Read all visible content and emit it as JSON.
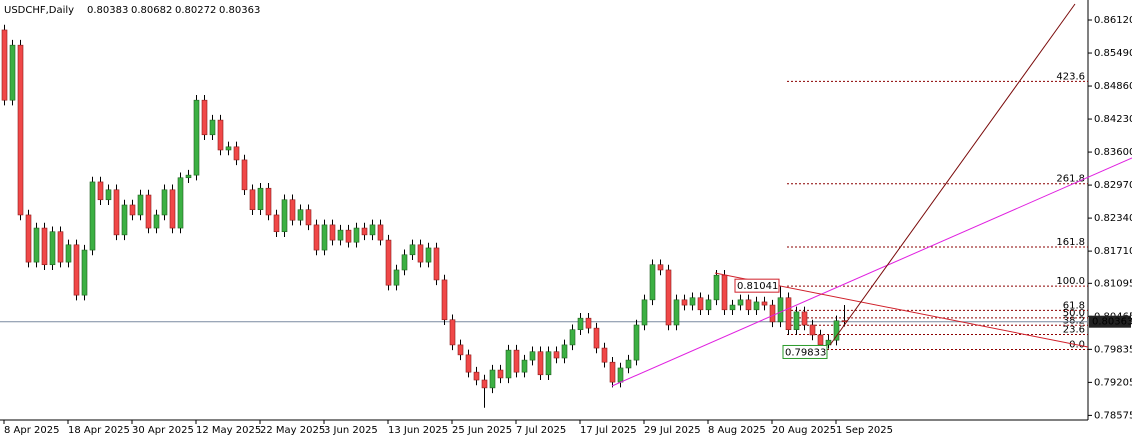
{
  "chart_data": {
    "type": "candlestick",
    "symbol": "USDCHF,Daily",
    "ylim": [
      0.78487,
      0.86502
    ],
    "yticks": [
      {
        "value": 0.8612,
        "label": "0.86120"
      },
      {
        "value": 0.8549,
        "label": "0.85490"
      },
      {
        "value": 0.8486,
        "label": "0.84860"
      },
      {
        "value": 0.8423,
        "label": "0.84230"
      },
      {
        "value": 0.836,
        "label": "0.83600"
      },
      {
        "value": 0.8297,
        "label": "0.82970"
      },
      {
        "value": 0.8234,
        "label": "0.82340"
      },
      {
        "value": 0.8171,
        "label": "0.81710"
      },
      0.81095,
      0.80465,
      0.79835,
      0.79205,
      0.78575
    ],
    "up_color": "#3cb043",
    "down_color": "#f04848",
    "categories": [
      "8 Apr 2025",
      null,
      null,
      null,
      null,
      null,
      null,
      null,
      "18 Apr 2025",
      null,
      null,
      null,
      null,
      null,
      null,
      null,
      "30 Apr 2025",
      null,
      null,
      null,
      null,
      null,
      null,
      null,
      "12 May 2025",
      null,
      null,
      null,
      null,
      null,
      null,
      null,
      "22 May 2025",
      null,
      null,
      null,
      null,
      null,
      null,
      null,
      "3 Jun 2025",
      null,
      null,
      null,
      null,
      null,
      null,
      null,
      "13 Jun 2025",
      null,
      null,
      null,
      null,
      null,
      null,
      null,
      "25 Jun 2025",
      null,
      null,
      null,
      null,
      null,
      null,
      null,
      "7 Jul 2025",
      null,
      null,
      null,
      null,
      null,
      null,
      null,
      "17 Jul 2025",
      null,
      null,
      null,
      null,
      null,
      null,
      null,
      "29 Jul 2025",
      null,
      null,
      null,
      null,
      null,
      null,
      null,
      "8 Aug 2025",
      null,
      null,
      null,
      null,
      null,
      null,
      null,
      "20 Aug 2025",
      null,
      null,
      null,
      null,
      null,
      null,
      null,
      "1 Sep 2025",
      null
    ],
    "ohlc": [
      [
        0.8593,
        0.8603,
        0.8449,
        0.8459
      ],
      [
        0.8459,
        0.8574,
        0.8449,
        0.8564
      ],
      [
        0.8564,
        0.8574,
        0.823,
        0.824
      ],
      [
        0.824,
        0.825,
        0.814,
        0.815
      ],
      [
        0.815,
        0.8225,
        0.814,
        0.8215
      ],
      [
        0.8215,
        0.8225,
        0.8135,
        0.8145
      ],
      [
        0.8145,
        0.8218,
        0.8135,
        0.8208
      ],
      [
        0.8208,
        0.8218,
        0.814,
        0.815
      ],
      [
        0.815,
        0.8193,
        0.814,
        0.8183
      ],
      [
        0.8183,
        0.8193,
        0.8077,
        0.8087
      ],
      [
        0.8087,
        0.8183,
        0.8077,
        0.8173
      ],
      [
        0.8173,
        0.8313,
        0.8163,
        0.8303
      ],
      [
        0.8303,
        0.8313,
        0.8259,
        0.8269
      ],
      [
        0.8269,
        0.8298,
        0.8259,
        0.8288
      ],
      [
        0.8288,
        0.8298,
        0.8192,
        0.8202
      ],
      [
        0.8202,
        0.8269,
        0.8192,
        0.8259
      ],
      [
        0.8259,
        0.8269,
        0.823,
        0.824
      ],
      [
        0.824,
        0.8288,
        0.823,
        0.8278
      ],
      [
        0.8278,
        0.8288,
        0.8205,
        0.8215
      ],
      [
        0.8215,
        0.825,
        0.8205,
        0.824
      ],
      [
        0.824,
        0.8298,
        0.823,
        0.8288
      ],
      [
        0.8288,
        0.8298,
        0.8205,
        0.8215
      ],
      [
        0.8215,
        0.8321,
        0.8205,
        0.8311
      ],
      [
        0.8311,
        0.8326,
        0.8301,
        0.8316
      ],
      [
        0.8316,
        0.8469,
        0.8306,
        0.8459
      ],
      [
        0.8459,
        0.8469,
        0.8383,
        0.8393
      ],
      [
        0.8393,
        0.8431,
        0.8383,
        0.8421
      ],
      [
        0.8421,
        0.8431,
        0.8354,
        0.8364
      ],
      [
        0.8364,
        0.838,
        0.8354,
        0.837
      ],
      [
        0.837,
        0.838,
        0.8335,
        0.8345
      ],
      [
        0.8345,
        0.8355,
        0.8278,
        0.8288
      ],
      [
        0.8288,
        0.8298,
        0.824,
        0.825
      ],
      [
        0.825,
        0.8301,
        0.824,
        0.8291
      ],
      [
        0.8291,
        0.8301,
        0.823,
        0.824
      ],
      [
        0.824,
        0.825,
        0.8198,
        0.8208
      ],
      [
        0.8208,
        0.8279,
        0.8198,
        0.8269
      ],
      [
        0.8269,
        0.8279,
        0.822,
        0.823
      ],
      [
        0.823,
        0.826,
        0.822,
        0.825
      ],
      [
        0.825,
        0.826,
        0.8211,
        0.8221
      ],
      [
        0.8221,
        0.8231,
        0.8163,
        0.8173
      ],
      [
        0.8173,
        0.8231,
        0.8163,
        0.8221
      ],
      [
        0.8221,
        0.8231,
        0.8182,
        0.8192
      ],
      [
        0.8192,
        0.8221,
        0.8182,
        0.8211
      ],
      [
        0.8211,
        0.8221,
        0.8178,
        0.8188
      ],
      [
        0.8188,
        0.8225,
        0.8178,
        0.8215
      ],
      [
        0.8215,
        0.8225,
        0.8192,
        0.8202
      ],
      [
        0.8202,
        0.8231,
        0.8192,
        0.8221
      ],
      [
        0.8221,
        0.8231,
        0.8182,
        0.8192
      ],
      [
        0.8192,
        0.8202,
        0.8096,
        0.8106
      ],
      [
        0.8106,
        0.8145,
        0.8096,
        0.8135
      ],
      [
        0.8135,
        0.8174,
        0.8125,
        0.8164
      ],
      [
        0.8164,
        0.8193,
        0.8154,
        0.8183
      ],
      [
        0.8183,
        0.8193,
        0.814,
        0.815
      ],
      [
        0.815,
        0.8187,
        0.814,
        0.8177
      ],
      [
        0.8177,
        0.8187,
        0.8106,
        0.8116
      ],
      [
        0.8116,
        0.8126,
        0.803,
        0.804
      ],
      [
        0.804,
        0.805,
        0.7982,
        0.7992
      ],
      [
        0.7992,
        0.8002,
        0.7963,
        0.7973
      ],
      [
        0.7973,
        0.7983,
        0.793,
        0.794
      ],
      [
        0.794,
        0.795,
        0.7915,
        0.7925
      ],
      [
        0.7925,
        0.7935,
        0.7872,
        0.791
      ],
      [
        0.791,
        0.7954,
        0.79,
        0.7944
      ],
      [
        0.7944,
        0.7954,
        0.7919,
        0.7929
      ],
      [
        0.7929,
        0.7992,
        0.7919,
        0.7982
      ],
      [
        0.7982,
        0.7992,
        0.793,
        0.794
      ],
      [
        0.794,
        0.7973,
        0.793,
        0.7963
      ],
      [
        0.7963,
        0.7989,
        0.7953,
        0.7979
      ],
      [
        0.7979,
        0.7989,
        0.7925,
        0.7935
      ],
      [
        0.7935,
        0.7989,
        0.7925,
        0.7979
      ],
      [
        0.7979,
        0.7989,
        0.7957,
        0.7967
      ],
      [
        0.7967,
        0.8002,
        0.7957,
        0.7992
      ],
      [
        0.7992,
        0.8031,
        0.7982,
        0.8021
      ],
      [
        0.8021,
        0.8053,
        0.8011,
        0.8043
      ],
      [
        0.8043,
        0.8053,
        0.8014,
        0.8024
      ],
      [
        0.8024,
        0.8034,
        0.7976,
        0.7986
      ],
      [
        0.7986,
        0.7996,
        0.7949,
        0.7959
      ],
      [
        0.7959,
        0.7969,
        0.7911,
        0.7921
      ],
      [
        0.7921,
        0.7958,
        0.7911,
        0.7948
      ],
      [
        0.7948,
        0.7973,
        0.7938,
        0.7963
      ],
      [
        0.7963,
        0.804,
        0.7953,
        0.803
      ],
      [
        0.803,
        0.8088,
        0.802,
        0.8078
      ],
      [
        0.8078,
        0.8155,
        0.8068,
        0.8145
      ],
      [
        0.8145,
        0.8155,
        0.8125,
        0.8135
      ],
      [
        0.8135,
        0.8145,
        0.802,
        0.803
      ],
      [
        0.803,
        0.8088,
        0.802,
        0.8078
      ],
      [
        0.8078,
        0.8088,
        0.8058,
        0.8068
      ],
      [
        0.8068,
        0.8092,
        0.8058,
        0.8082
      ],
      [
        0.8082,
        0.8092,
        0.8049,
        0.8059
      ],
      [
        0.8059,
        0.8088,
        0.8049,
        0.8078
      ],
      [
        0.8078,
        0.8135,
        0.8068,
        0.8125
      ],
      [
        0.8125,
        0.8135,
        0.8049,
        0.8059
      ],
      [
        0.8059,
        0.8078,
        0.8049,
        0.8068
      ],
      [
        0.8068,
        0.8088,
        0.8058,
        0.8078
      ],
      [
        0.8078,
        0.8088,
        0.8049,
        0.8059
      ],
      [
        0.8059,
        0.8084,
        0.8049,
        0.8074
      ],
      [
        0.8074,
        0.8084,
        0.8058,
        0.8068
      ],
      [
        0.8068,
        0.8078,
        0.8026,
        0.8036
      ],
      [
        0.8036,
        0.81041,
        0.8026,
        0.8082
      ],
      [
        0.8082,
        0.8092,
        0.8011,
        0.8021
      ],
      [
        0.8021,
        0.8065,
        0.8011,
        0.8055
      ],
      [
        0.8055,
        0.8065,
        0.802,
        0.803
      ],
      [
        0.803,
        0.804,
        0.8001,
        0.8011
      ],
      [
        0.8011,
        0.8021,
        0.79833,
        0.7992
      ],
      [
        0.7992,
        0.8011,
        0.7985,
        0.8001
      ],
      [
        0.8001,
        0.8048,
        0.7991,
        0.8038
      ],
      [
        0.80383,
        0.80682,
        0.80272,
        0.80363
      ]
    ],
    "swing_high": 0.81041,
    "swing_low": 0.79833,
    "fib_levels": [
      {
        "level": {
          "value": 0,
          "label": "0.0"
        },
        "price": 0.79833
      },
      {
        "level": 23.6,
        "price": 0.80118
      },
      {
        "level": 38.2,
        "price": 0.80295
      },
      {
        "level": {
          "value": 50,
          "label": "50.0"
        },
        "price": 0.80437
      },
      {
        "level": 61.8,
        "price": 0.8058
      },
      {
        "level": {
          "value": 100,
          "label": "100.0"
        },
        "price": 0.81041
      },
      {
        "level": 161.8,
        "price": 0.81788
      },
      {
        "level": 261.8,
        "price": 0.82996
      },
      {
        "level": 423.6,
        "price": 0.8495
      }
    ]
  }
}
